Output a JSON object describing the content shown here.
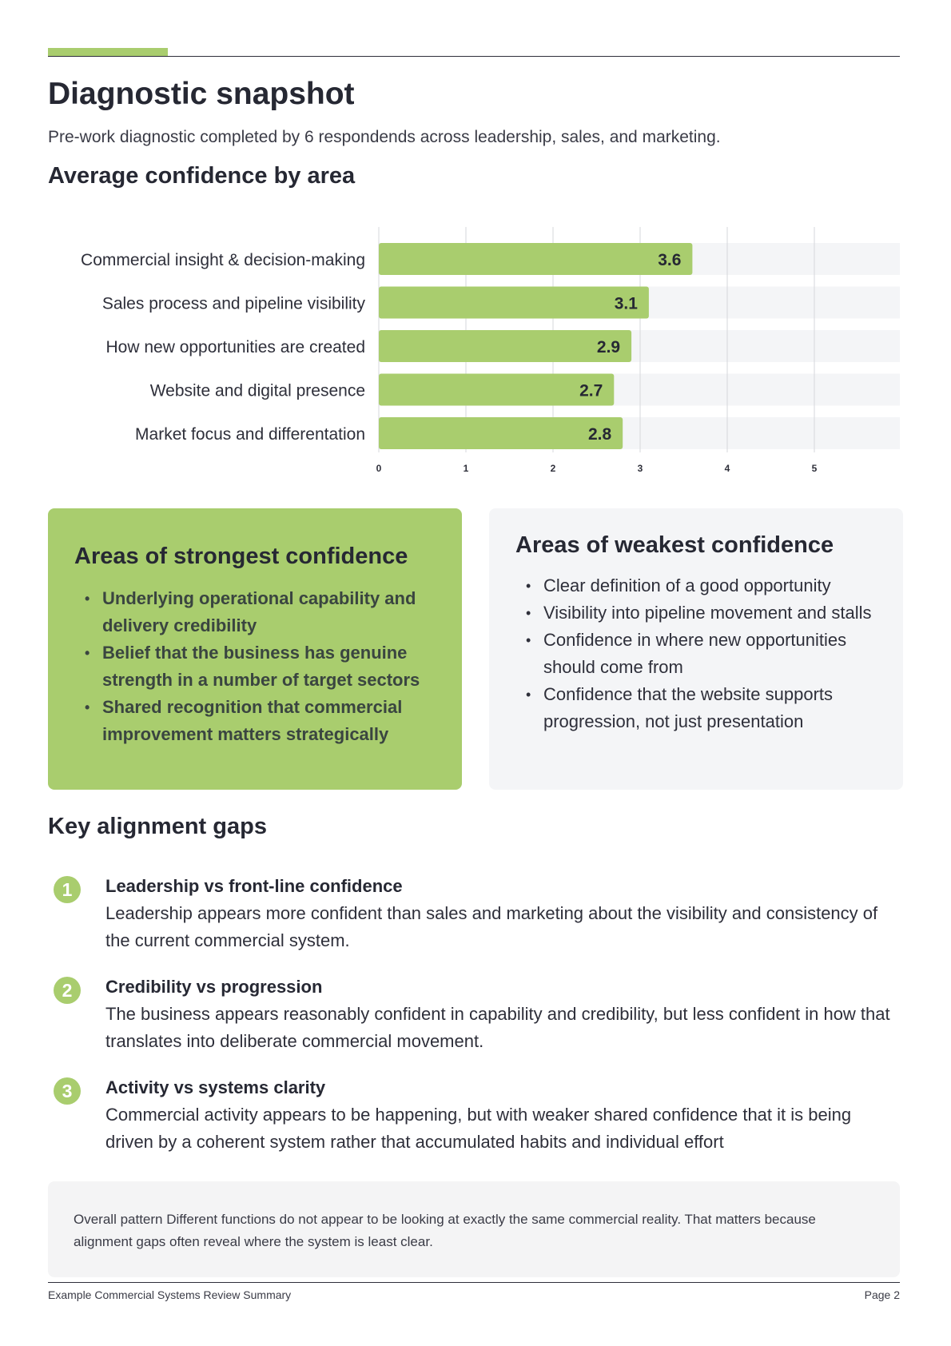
{
  "header": {
    "title": "Diagnostic snapshot",
    "subtitle": "Pre-work diagnostic completed by 6 respondends across leadership, sales, and marketing."
  },
  "chart_section": {
    "heading": "Average confidence by area"
  },
  "chart_data": {
    "type": "bar",
    "orientation": "horizontal",
    "categories": [
      "Commercial insight & decision-making",
      "Sales process and pipeline visibility",
      "How new opportunities are created",
      "Website and digital presence",
      "Market focus and differentation"
    ],
    "values": [
      3.6,
      3.1,
      2.9,
      2.7,
      2.8
    ],
    "xticks": [
      0,
      1,
      2,
      3,
      4,
      5
    ],
    "xlim": [
      0,
      6
    ],
    "grid": true,
    "colors": {
      "bar": "#a9cd6e",
      "track": "#f4f5f7"
    }
  },
  "strongest": {
    "heading": "Areas of strongest confidence",
    "items": [
      "Underlying operational capability and delivery credibility",
      "Belief that the business has genuine strength in a number of target sectors",
      "Shared recognition that commercial improvement matters strategically"
    ]
  },
  "weakest": {
    "heading": "Areas of weakest confidence",
    "items": [
      "Clear definition of a good opportunity",
      "Visibility into pipeline movement and stalls",
      "Confidence in where new opportunities should come from",
      "Confidence that the website supports progression, not just presentation"
    ]
  },
  "gaps": {
    "heading": "Key alignment gaps",
    "items": [
      {
        "number": "1",
        "title": "Leadership vs front-line confidence",
        "text": "Leadership appears more confident than sales and marketing about the visibility and consistency of the current commercial system."
      },
      {
        "number": "2",
        "title": "Credibility vs progression",
        "text": "The business appears reasonably confident in capability and credibility, but less confident in how that translates into deliberate commercial movement."
      },
      {
        "number": "3",
        "title": "Activity vs systems clarity",
        "text": "Commercial activity appears to be happening, but with weaker shared confidence that it is being driven by a coherent system rather that accumulated habits and individual effort"
      }
    ]
  },
  "pattern": {
    "text": "Overall pattern Different functions do not appear to be looking at exactly the same commercial reality. That matters because alignment gaps often reveal where the system is least clear."
  },
  "footer": {
    "left": "Example Commercial Systems Review Summary",
    "right": "Page 2"
  },
  "colors": {
    "accent": "#a9cd6e",
    "panel": "#f4f5f7",
    "text": "#2e2f3a"
  }
}
